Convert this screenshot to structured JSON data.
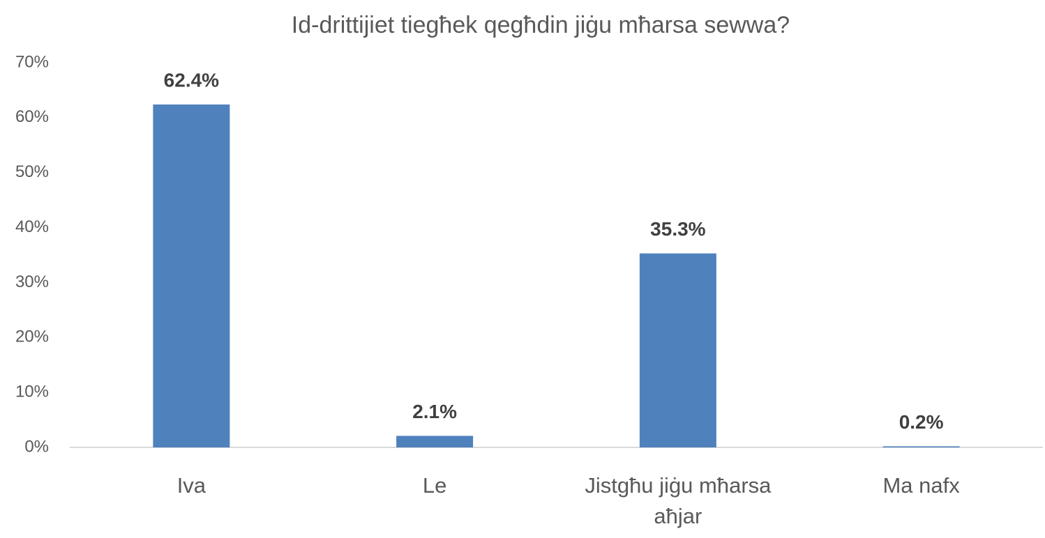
{
  "chart_data": {
    "type": "bar",
    "title": "Id-drittijiet tiegħek qegħdin jiġu mħarsa sewwa?",
    "categories": [
      "Iva",
      "Le",
      "Jistgħu jiġu mħarsa aħjar",
      "Ma nafx"
    ],
    "values": [
      62.4,
      2.1,
      35.3,
      0.2
    ],
    "value_labels": [
      "62.4%",
      "2.1%",
      "35.3%",
      "0.2%"
    ],
    "color": "#4f81bd",
    "ylim": [
      0,
      70
    ],
    "yticks": [
      {
        "value": 0,
        "label": "0%"
      },
      {
        "value": 10,
        "label": "10%"
      },
      {
        "value": 20,
        "label": "20%"
      },
      {
        "value": 30,
        "label": "30%"
      },
      {
        "value": 40,
        "label": "40%"
      },
      {
        "value": 50,
        "label": "50%"
      },
      {
        "value": 60,
        "label": "60%"
      },
      {
        "value": 70,
        "label": "70%"
      }
    ],
    "grid": false
  }
}
